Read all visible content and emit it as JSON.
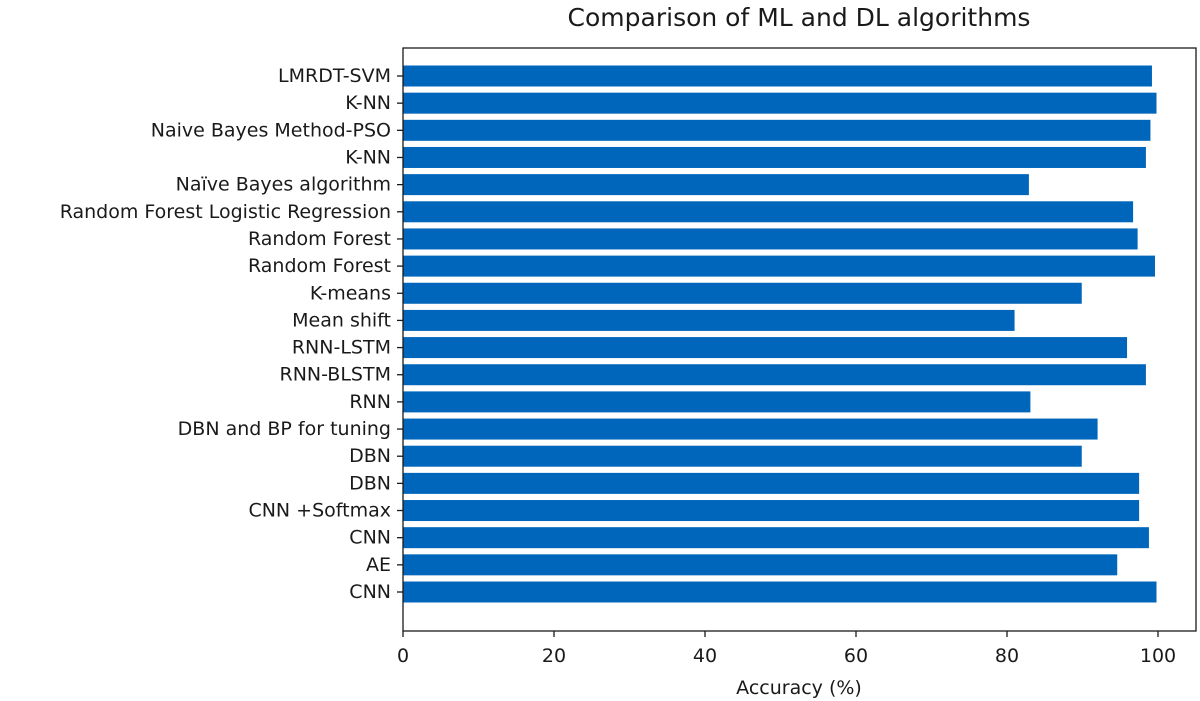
{
  "chart_data": {
    "type": "bar",
    "orientation": "horizontal",
    "title": "Comparison of ML and DL algorithms",
    "xlabel": "Accuracy (%)",
    "ylabel": "",
    "xlim": [
      0,
      105
    ],
    "xticks": [
      0,
      20,
      40,
      60,
      80,
      100
    ],
    "grid": false,
    "bar_color": "#0066bb",
    "categories": [
      "LMRDT-SVM",
      "K-NN",
      "Naive Bayes Method-PSO",
      "K-NN",
      "Naïve Bayes algorithm",
      "Random Forest Logistic Regression",
      "Random Forest",
      "Random Forest",
      "K-means",
      "Mean shift",
      "RNN-LSTM",
      "RNN-BLSTM",
      "RNN",
      "DBN and BP for tuning",
      "DBN",
      "DBN",
      "CNN +Softmax",
      "CNN",
      "AE",
      "CNN"
    ],
    "values": [
      99.2,
      99.8,
      99.0,
      98.4,
      82.9,
      96.7,
      97.3,
      99.6,
      89.9,
      81.0,
      95.9,
      98.4,
      83.1,
      92.0,
      89.9,
      97.5,
      97.5,
      98.8,
      94.6,
      99.8
    ]
  }
}
